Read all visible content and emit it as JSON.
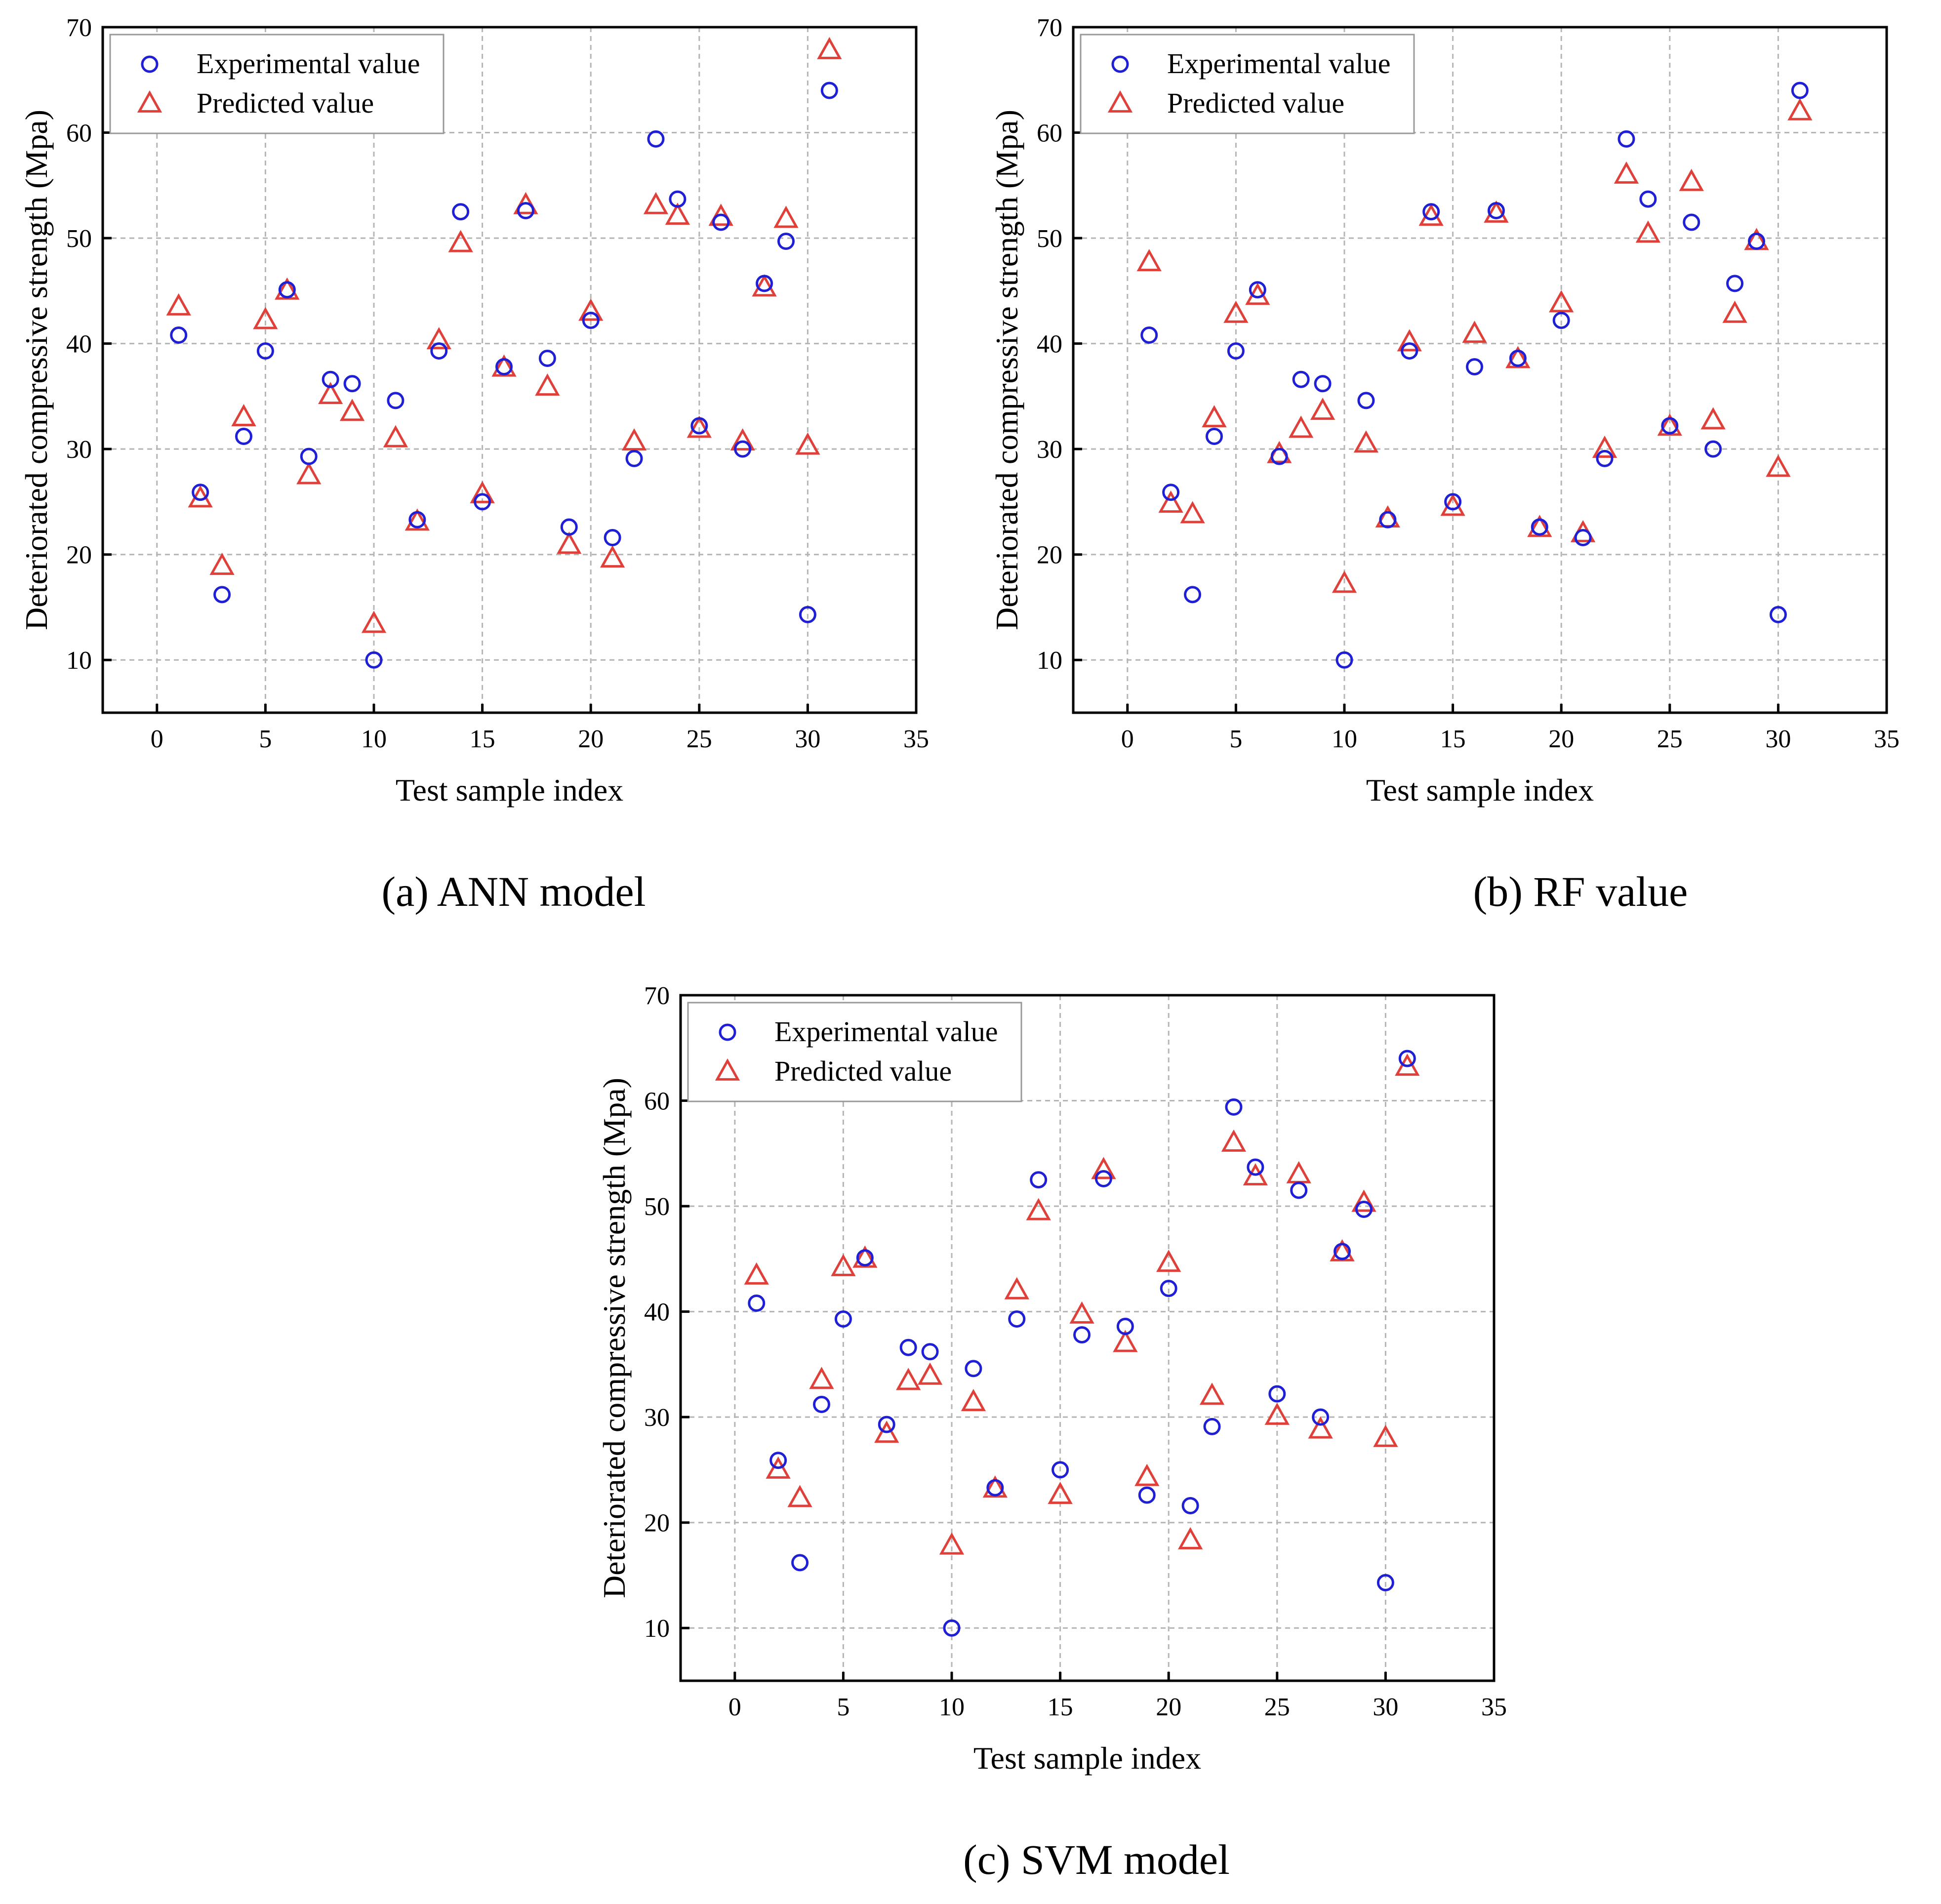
{
  "colors": {
    "experimental": "#1f1fd6",
    "predicted": "#e0403a",
    "grid": "#b5b5b5",
    "axis": "#000000"
  },
  "legend": {
    "experimental_label": "Experimental value",
    "predicted_label": "Predicted value"
  },
  "captions": {
    "a": "(a) ANN model",
    "b": "(b) RF value",
    "c": "(c) SVM model"
  },
  "chart_data": [
    {
      "id": "ann",
      "type": "scatter",
      "title": "(a) ANN model",
      "xlabel": "Test sample index",
      "ylabel": "Deteriorated compressive strength (Mpa)",
      "xlim": [
        -2.5,
        35
      ],
      "ylim": [
        5,
        70
      ],
      "xticks": [
        0,
        5,
        10,
        15,
        20,
        25,
        30,
        35
      ],
      "yticks": [
        10,
        20,
        30,
        40,
        50,
        60,
        70
      ],
      "grid": true,
      "legend_position": "top-left",
      "x": [
        1,
        2,
        3,
        4,
        5,
        6,
        7,
        8,
        9,
        10,
        11,
        12,
        13,
        14,
        15,
        16,
        17,
        18,
        19,
        20,
        21,
        22,
        23,
        24,
        25,
        26,
        27,
        28,
        29,
        30,
        31
      ],
      "series": [
        {
          "name": "Experimental value",
          "marker": "circle",
          "values": [
            40.8,
            25.9,
            16.2,
            31.2,
            39.3,
            45.1,
            29.3,
            36.6,
            36.2,
            10.0,
            34.6,
            23.3,
            39.3,
            52.5,
            25.0,
            37.8,
            52.6,
            38.6,
            22.6,
            42.2,
            21.6,
            29.1,
            59.4,
            53.7,
            32.2,
            51.5,
            30.0,
            45.7,
            49.7,
            14.3,
            64.0
          ]
        },
        {
          "name": "Predicted value",
          "marker": "triangle",
          "values": [
            43.5,
            25.3,
            18.9,
            33.0,
            42.2,
            45.0,
            27.5,
            35.1,
            33.5,
            13.4,
            31.0,
            23.1,
            40.3,
            49.5,
            25.7,
            37.7,
            53.1,
            35.9,
            20.9,
            43.0,
            19.6,
            30.7,
            53.1,
            52.1,
            31.9,
            52.0,
            30.7,
            45.3,
            51.8,
            30.3,
            67.8
          ]
        }
      ]
    },
    {
      "id": "rf",
      "type": "scatter",
      "title": "(b) RF value",
      "xlabel": "Test sample index",
      "ylabel": "Deteriorated compressive strength (Mpa)",
      "xlim": [
        -2.5,
        35
      ],
      "ylim": [
        5,
        70
      ],
      "xticks": [
        0,
        5,
        10,
        15,
        20,
        25,
        30,
        35
      ],
      "yticks": [
        10,
        20,
        30,
        40,
        50,
        60,
        70
      ],
      "grid": true,
      "legend_position": "top-left",
      "x": [
        1,
        2,
        3,
        4,
        5,
        6,
        7,
        8,
        9,
        10,
        11,
        12,
        13,
        14,
        15,
        16,
        17,
        18,
        19,
        20,
        21,
        22,
        23,
        24,
        25,
        26,
        27,
        28,
        29,
        30,
        31
      ],
      "series": [
        {
          "name": "Experimental value",
          "marker": "circle",
          "values": [
            40.8,
            25.9,
            16.2,
            31.2,
            39.3,
            45.1,
            29.3,
            36.6,
            36.2,
            10.0,
            34.6,
            23.3,
            39.3,
            52.5,
            25.0,
            37.8,
            52.6,
            38.6,
            22.6,
            42.2,
            21.6,
            29.1,
            59.4,
            53.7,
            32.2,
            51.5,
            30.0,
            45.7,
            49.7,
            14.3,
            64.0
          ]
        },
        {
          "name": "Predicted value",
          "marker": "triangle",
          "values": [
            47.7,
            24.8,
            23.8,
            32.9,
            42.8,
            44.5,
            29.5,
            31.9,
            33.6,
            17.2,
            30.5,
            23.4,
            40.1,
            52.0,
            24.5,
            40.9,
            52.3,
            38.5,
            22.5,
            43.8,
            22.0,
            30.0,
            56.0,
            50.4,
            32.1,
            55.3,
            32.7,
            42.8,
            49.7,
            28.2,
            62.0
          ]
        }
      ]
    },
    {
      "id": "svm",
      "type": "scatter",
      "title": "(c) SVM model",
      "xlabel": "Test sample index",
      "ylabel": "Deteriorated compressive strength (Mpa)",
      "xlim": [
        -2.5,
        35
      ],
      "ylim": [
        5,
        70
      ],
      "xticks": [
        0,
        5,
        10,
        15,
        20,
        25,
        30,
        35
      ],
      "yticks": [
        10,
        20,
        30,
        40,
        50,
        60,
        70
      ],
      "grid": true,
      "legend_position": "top-left",
      "x": [
        1,
        2,
        3,
        4,
        5,
        6,
        7,
        8,
        9,
        10,
        11,
        12,
        13,
        14,
        15,
        16,
        17,
        18,
        19,
        20,
        21,
        22,
        23,
        24,
        25,
        26,
        27,
        28,
        29,
        30,
        31
      ],
      "series": [
        {
          "name": "Experimental value",
          "marker": "circle",
          "values": [
            40.8,
            25.9,
            16.2,
            31.2,
            39.3,
            45.1,
            29.3,
            36.6,
            36.2,
            10.0,
            34.6,
            23.3,
            39.3,
            52.5,
            25.0,
            37.8,
            52.6,
            38.6,
            22.6,
            42.2,
            21.6,
            29.1,
            59.4,
            53.7,
            32.2,
            51.5,
            30.0,
            45.7,
            49.7,
            14.3,
            64.0
          ]
        },
        {
          "name": "Predicted value",
          "marker": "triangle",
          "values": [
            43.4,
            25.0,
            22.3,
            33.5,
            44.2,
            45.0,
            28.4,
            33.4,
            33.9,
            17.8,
            31.4,
            23.2,
            42.0,
            49.5,
            22.6,
            39.7,
            53.4,
            37.0,
            24.3,
            44.6,
            18.3,
            32.0,
            56.0,
            52.8,
            30.1,
            53.0,
            28.8,
            45.6,
            50.3,
            28.0,
            63.2
          ]
        }
      ]
    }
  ]
}
